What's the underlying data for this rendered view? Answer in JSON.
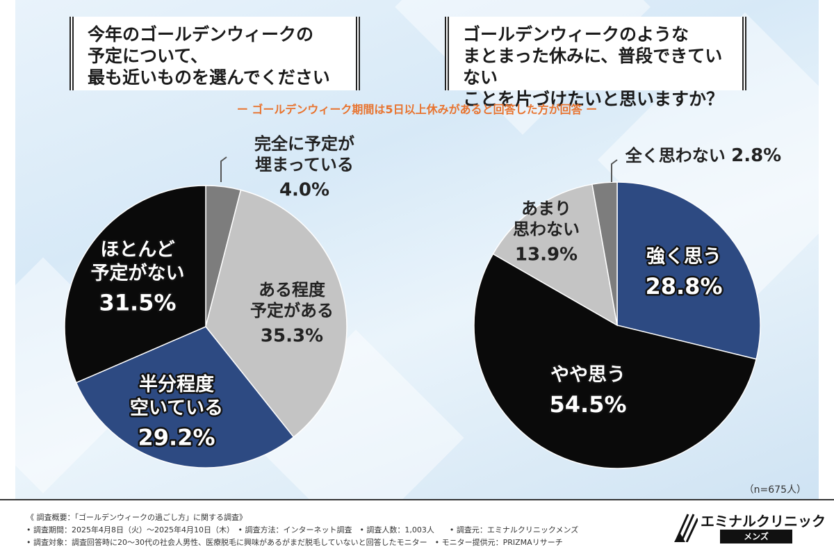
{
  "questions": {
    "left": "今年のゴールデンウィークの\n予定について、\n最も近いものを選んでください",
    "right": "ゴールデンウィークのような\nまとまった休みに、普段できていない\nことを片づけたいと思いますか？"
  },
  "subnote": "ー ゴールデンウィーク期間は5日以上休みがあると回答した方が回答 ー",
  "n_label": "（n=675人）",
  "chart_data": [
    {
      "type": "pie",
      "title": "今年のゴールデンウィークの予定について、最も近いものを選んでください",
      "slices": [
        {
          "label": "完全に予定が埋まっている",
          "display": "完全に予定が\n埋まっている",
          "value": 4.0,
          "text": "4.0%",
          "color": "#7d7d7d"
        },
        {
          "label": "ある程度予定がある",
          "display": "ある程度\n予定がある",
          "value": 35.3,
          "text": "35.3%",
          "color": "#c4c4c4"
        },
        {
          "label": "半分程度空いている",
          "display": "半分程度\n空いている",
          "value": 29.2,
          "text": "29.2%",
          "color": "#2d4a82"
        },
        {
          "label": "ほとんど予定がない",
          "display": "ほとんど\n予定がない",
          "value": 31.5,
          "text": "31.5%",
          "color": "#0a0a0a"
        }
      ]
    },
    {
      "type": "pie",
      "title": "ゴールデンウィークのようなまとまった休みに、普段できていないことを片づけたいと思いますか？",
      "slices": [
        {
          "label": "強く思う",
          "display": "強く思う",
          "value": 28.8,
          "text": "28.8%",
          "color": "#2d4a82"
        },
        {
          "label": "やや思う",
          "display": "やや思う",
          "value": 54.5,
          "text": "54.5%",
          "color": "#0a0a0a"
        },
        {
          "label": "あまり思わない",
          "display": "あまり\n思わない",
          "value": 13.9,
          "text": "13.9%",
          "color": "#c4c4c4"
        },
        {
          "label": "全く思わない",
          "display": "全く思わない",
          "value": 2.8,
          "text": "2.8%",
          "color": "#7d7d7d"
        }
      ]
    }
  ],
  "footer": {
    "line1": "《 調査概要：「ゴールデンウィークの過ごし方」に関する調査》",
    "line2": "• 調査期間：2025年4月8日（火）〜2025年4月10日（木）　• 調査方法：インターネット調査　• 調査人数：1,003人　　• 調査元：エミナルクリニックメンズ",
    "line3": "• 調査対象：調査回答時に20〜30代の社会人男性、医療脱毛に興味があるがまだ脱毛していないと回答したモニター　• モニター提供元：PRIZMAリサーチ"
  },
  "logo": {
    "name": "エミナルクリニック",
    "sub": "メンズ"
  }
}
